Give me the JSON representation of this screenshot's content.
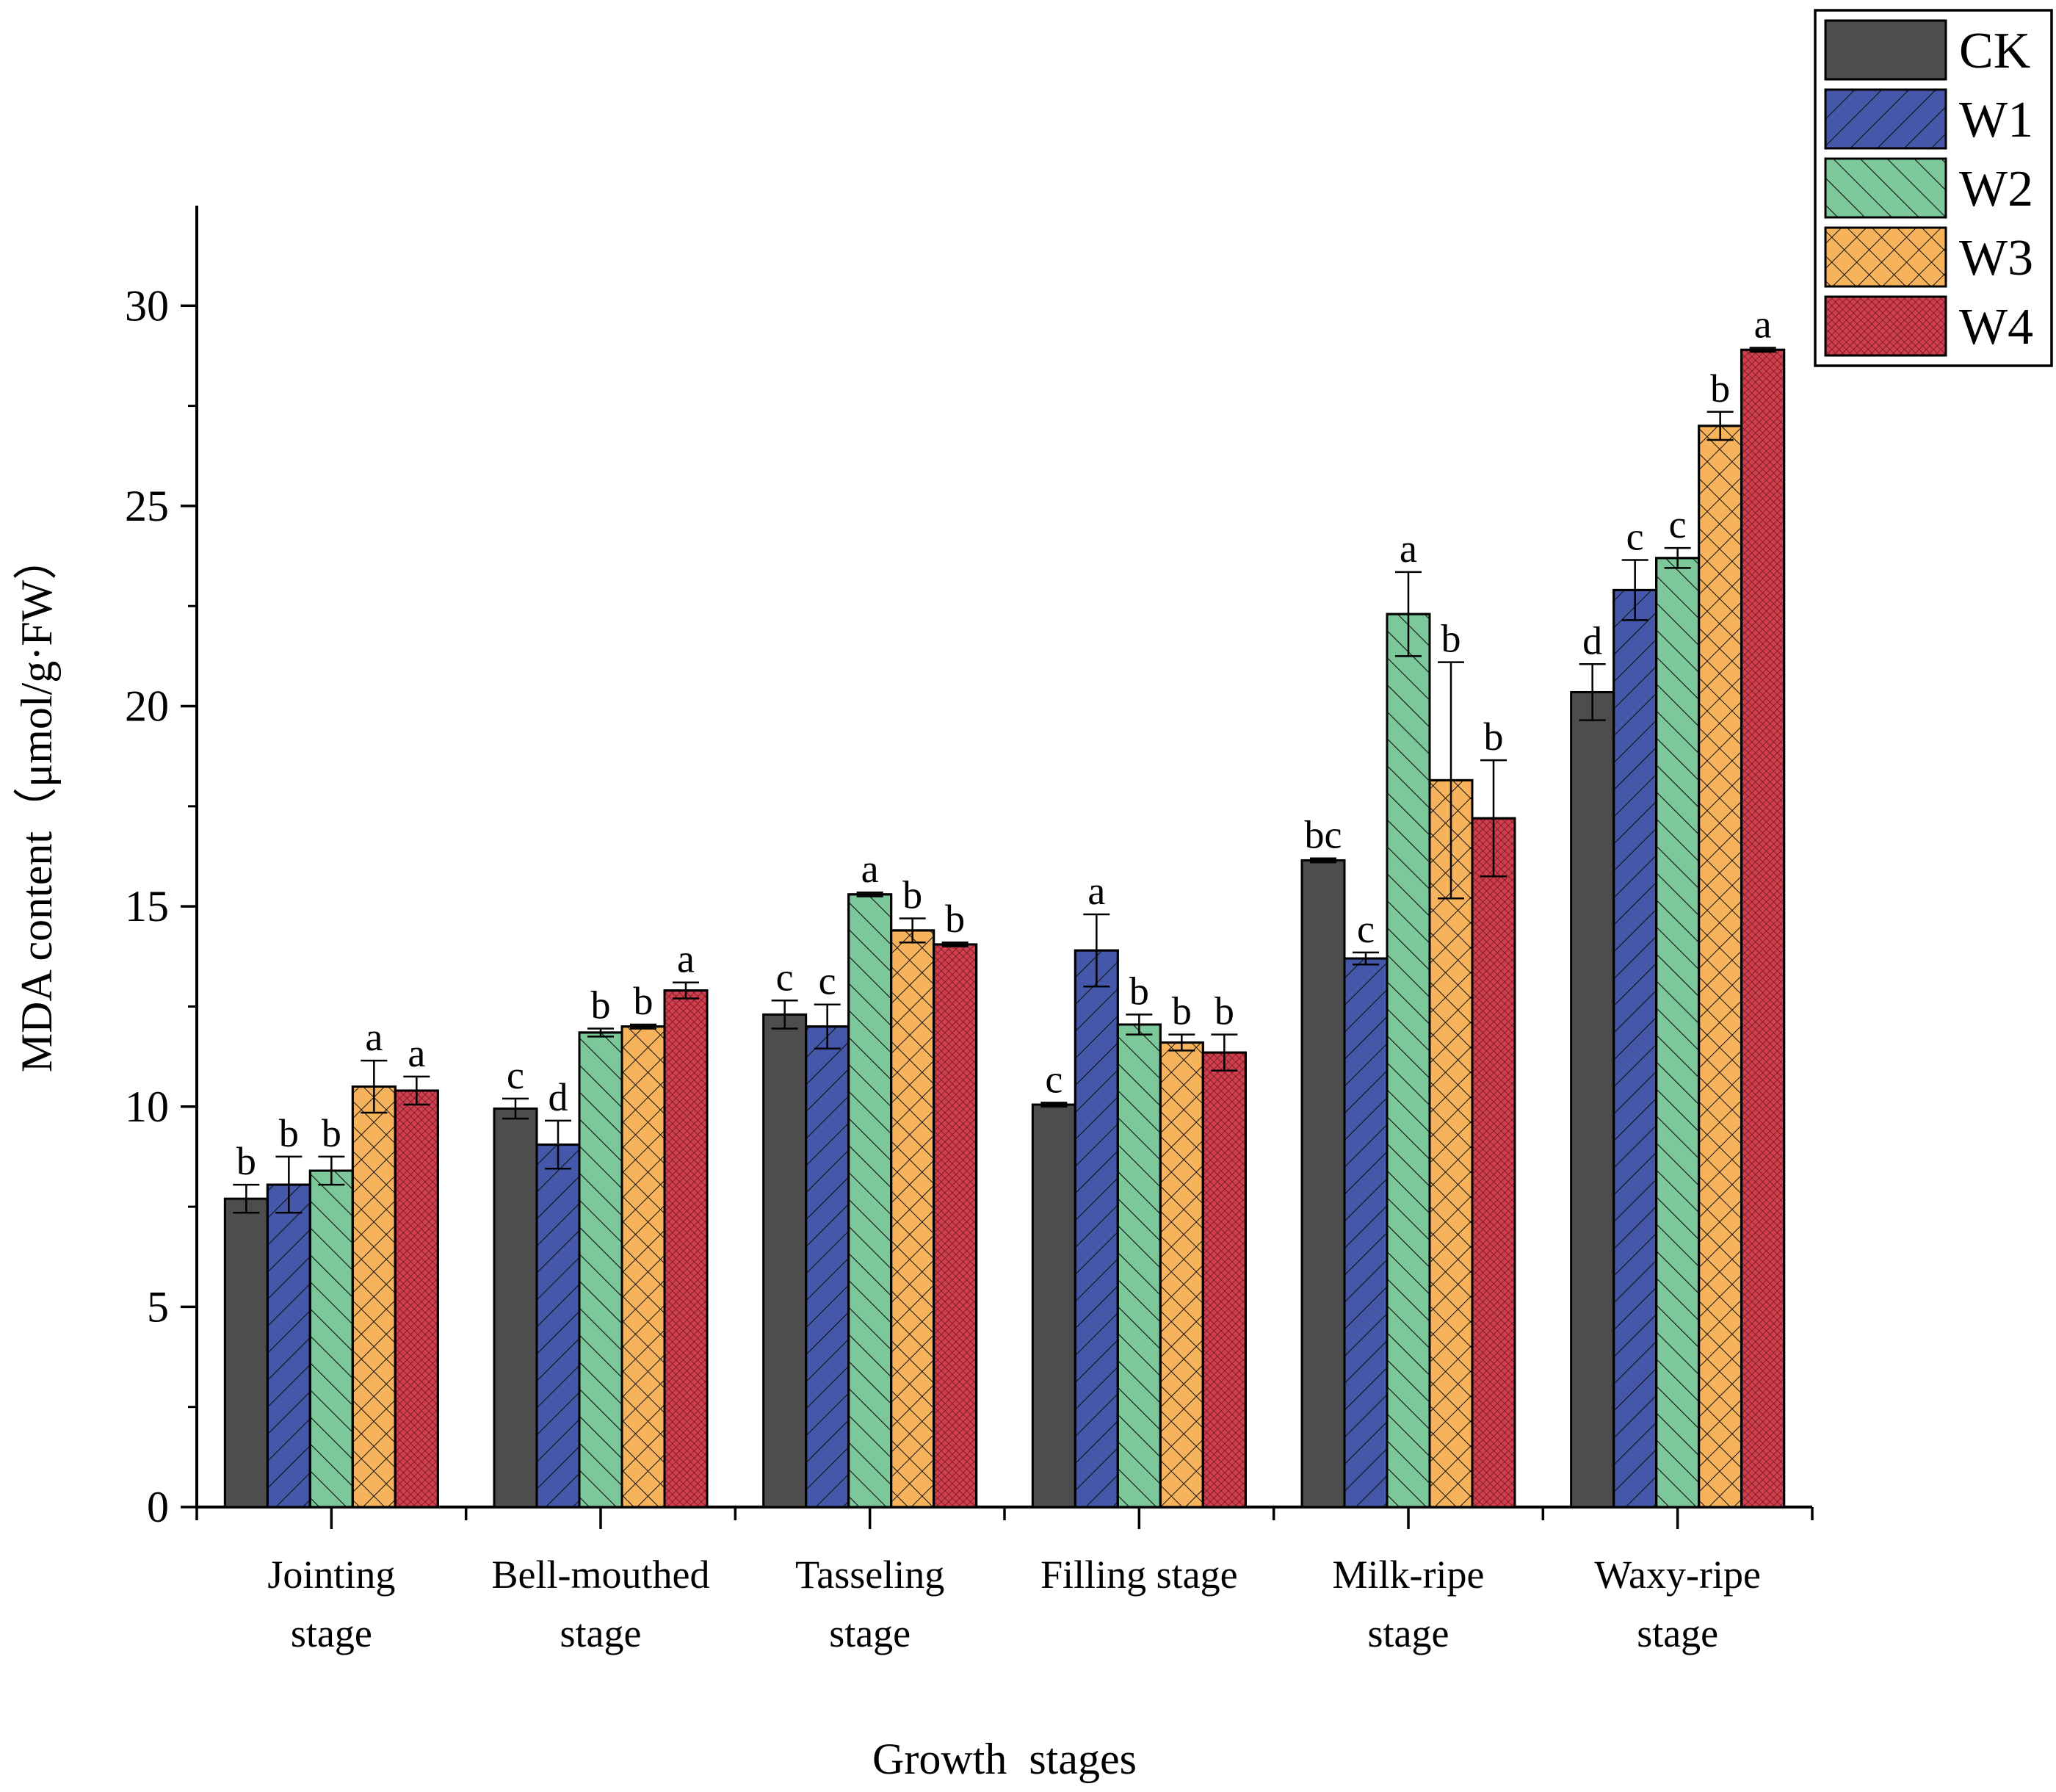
{
  "chart_data": {
    "type": "bar",
    "title": "",
    "xlabel": "Growth  stages",
    "ylabel": "MDA content（μmol/g·FW）",
    "ylim": [
      0,
      32.5
    ],
    "yticks": [
      0,
      5,
      10,
      15,
      20,
      25,
      30
    ],
    "grid": false,
    "legend_position": "top-right",
    "categories": [
      [
        "Jointing",
        "stage"
      ],
      [
        "Bell-mouthed",
        "stage"
      ],
      [
        "Tasseling",
        "stage"
      ],
      [
        "Filling stage"
      ],
      [
        "Milk-ripe",
        "stage"
      ],
      [
        "Waxy-ripe",
        "stage"
      ]
    ],
    "series": [
      {
        "name": "CK",
        "color": "#4d4d4d",
        "pattern": "none",
        "values": [
          7.7,
          9.95,
          12.3,
          10.05,
          16.15,
          20.35
        ],
        "errors": [
          0.35,
          0.25,
          0.35,
          0.05,
          0.05,
          0.7
        ],
        "letters": [
          "b",
          "c",
          "c",
          "c",
          "bc",
          "d"
        ]
      },
      {
        "name": "W1",
        "color": "#4457a8",
        "pattern": "forward-diagonal",
        "values": [
          8.05,
          9.05,
          12.0,
          13.9,
          13.7,
          22.9
        ],
        "errors": [
          0.7,
          0.6,
          0.55,
          0.9,
          0.15,
          0.75
        ],
        "letters": [
          "b",
          "d",
          "c",
          "a",
          "c",
          "c"
        ]
      },
      {
        "name": "W2",
        "color": "#7dc89a",
        "pattern": "back-diagonal",
        "values": [
          8.4,
          11.85,
          15.3,
          12.05,
          22.3,
          23.7
        ],
        "errors": [
          0.35,
          0.1,
          0.05,
          0.25,
          1.05,
          0.25
        ],
        "letters": [
          "b",
          "b",
          "a",
          "b",
          "a",
          "c"
        ]
      },
      {
        "name": "W3",
        "color": "#f7b35c",
        "pattern": "crosshatch",
        "values": [
          10.5,
          12.0,
          14.4,
          11.6,
          18.15,
          27.0
        ],
        "errors": [
          0.65,
          0.05,
          0.3,
          0.2,
          2.95,
          0.35
        ],
        "letters": [
          "a",
          "b",
          "b",
          "b",
          "b",
          "b"
        ]
      },
      {
        "name": "W4",
        "color": "#d03f4e",
        "pattern": "dense-dots",
        "values": [
          10.4,
          12.9,
          14.05,
          11.35,
          17.2,
          28.9
        ],
        "errors": [
          0.35,
          0.2,
          0.05,
          0.45,
          1.45,
          0.05
        ],
        "letters": [
          "a",
          "a",
          "b",
          "b",
          "b",
          "a"
        ]
      }
    ]
  }
}
